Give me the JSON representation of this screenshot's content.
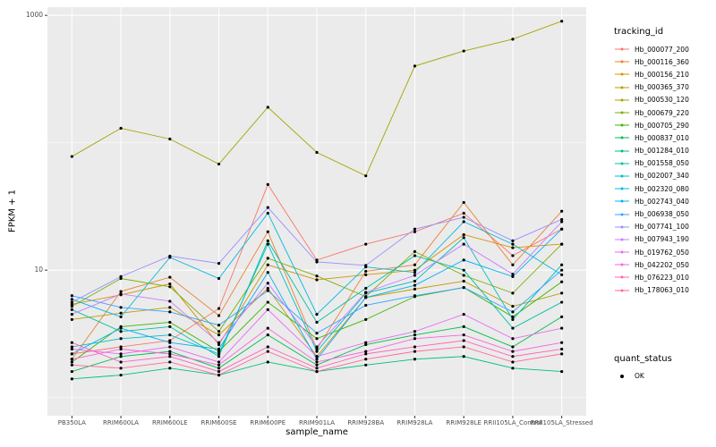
{
  "figure": {
    "y_axis_title": "FPKM + 1",
    "x_axis_title": "sample_name",
    "legend_tracking_title": "tracking_id",
    "legend_quant_title": "quant_status",
    "legend_quant_entries": [
      "OK"
    ]
  },
  "chart_data": {
    "type": "line",
    "title": "",
    "xlabel": "sample_name",
    "ylabel": "FPKM + 1",
    "y_scale": "log10",
    "ylim": [
      0.72,
      1160
    ],
    "y_major_breaks": [
      10,
      1000
    ],
    "y_minor_breaks": [
      1,
      100
    ],
    "grid": true,
    "legend_position": "right",
    "panel_background": "#EBEBEB",
    "gridline_color": "#FFFFFF",
    "point_color": "#000000",
    "point_status": "OK",
    "categories": [
      "PB350LA",
      "RRIM600LA",
      "RRIM600LE",
      "RRIM600SE",
      "RRIM600PE",
      "RRIM901LA",
      "RRIM928BA",
      "RRIM928LA",
      "RRIM928LE",
      "RRII105LA_Control",
      "RRII105LA_Stressed"
    ],
    "series": [
      {
        "name": "Hb_000077_200",
        "color": "#F8766D",
        "values": [
          2.2,
          2.5,
          2.8,
          5.0,
          47,
          12,
          16,
          20,
          28,
          13,
          21
        ]
      },
      {
        "name": "Hb_000116_360",
        "color": "#EA8331",
        "values": [
          2.0,
          6.8,
          8.8,
          4.4,
          20,
          2.4,
          9.8,
          11,
          34,
          11,
          29
        ]
      },
      {
        "name": "Hb_000156_210",
        "color": "#D89000",
        "values": [
          5.4,
          6.4,
          7.8,
          2.6,
          11,
          8.4,
          9.2,
          10,
          19,
          15,
          16
        ]
      },
      {
        "name": "Hb_000365_370",
        "color": "#C09B00",
        "values": [
          4.1,
          4.6,
          5.1,
          3.1,
          7.2,
          2.1,
          6.1,
          7.1,
          8.2,
          5.2,
          6.6
        ]
      },
      {
        "name": "Hb_000530_120",
        "color": "#A3A500",
        "values": [
          78,
          130,
          107,
          68,
          190,
          84,
          55,
          400,
          525,
          650,
          900
        ]
      },
      {
        "name": "Hb_000679_220",
        "color": "#7CAE00",
        "values": [
          5.2,
          8.6,
          7.4,
          3.3,
          12.4,
          9.0,
          6.2,
          14,
          9.1,
          6.6,
          16
        ]
      },
      {
        "name": "Hb_000705_290",
        "color": "#39B600",
        "values": [
          1.9,
          3.6,
          3.9,
          2.3,
          5.6,
          2.9,
          4.1,
          6.2,
          7.3,
          4.3,
          8.1
        ]
      },
      {
        "name": "Hb_000837_010",
        "color": "#00BB4E",
        "values": [
          1.6,
          2.1,
          2.3,
          1.7,
          3.1,
          1.8,
          2.6,
          3.1,
          3.6,
          2.5,
          4.3
        ]
      },
      {
        "name": "Hb_001284_010",
        "color": "#00BF7D",
        "values": [
          1.4,
          1.5,
          1.7,
          1.5,
          1.9,
          1.6,
          1.8,
          2.0,
          2.1,
          1.7,
          1.6
        ]
      },
      {
        "name": "Hb_001558_050",
        "color": "#00C1A3",
        "values": [
          4.9,
          3.3,
          3.6,
          2.1,
          17,
          3.9,
          7.2,
          13,
          10,
          3.5,
          5.6
        ]
      },
      {
        "name": "Hb_002007_340",
        "color": "#00BFC4",
        "values": [
          2.5,
          2.9,
          3.1,
          2.2,
          16,
          2.3,
          6.6,
          8.2,
          18,
          4.1,
          11
        ]
      },
      {
        "name": "Hb_002320_080",
        "color": "#00BAE0",
        "values": [
          5.9,
          4.3,
          12.6,
          8.6,
          28,
          4.5,
          10.6,
          9.6,
          24,
          16,
          9.2
        ]
      },
      {
        "name": "Hb_002743_040",
        "color": "#00B0F6",
        "values": [
          2.2,
          3.5,
          2.7,
          2.4,
          9.6,
          2.0,
          6.1,
          7.6,
          12,
          8.9,
          21
        ]
      },
      {
        "name": "Hb_006938_050",
        "color": "#35A2FF",
        "values": [
          6.3,
          5.1,
          4.7,
          3.7,
          6.9,
          3.2,
          5.3,
          6.3,
          7.3,
          4.7,
          10
        ]
      },
      {
        "name": "Hb_007741_100",
        "color": "#9590FF",
        "values": [
          5.6,
          8.9,
          12.9,
          11.3,
          31,
          11.6,
          10.9,
          21,
          26,
          17,
          25
        ]
      },
      {
        "name": "Hb_007943_190",
        "color": "#C77CFF",
        "values": [
          4.5,
          6.5,
          5.7,
          2.7,
          7.9,
          2.5,
          6.7,
          9.1,
          16,
          9.3,
          24
        ]
      },
      {
        "name": "Hb_019762_050",
        "color": "#E76BF3",
        "values": [
          2.4,
          2.2,
          2.5,
          1.9,
          4.9,
          2.1,
          2.7,
          3.3,
          4.5,
          2.9,
          3.5
        ]
      },
      {
        "name": "Hb_042202_050",
        "color": "#FA62DB",
        "values": [
          2.0,
          2.4,
          2.2,
          1.8,
          3.5,
          1.9,
          2.3,
          2.9,
          3.1,
          2.3,
          2.7
        ]
      },
      {
        "name": "Hb_076223_010",
        "color": "#FF62BC",
        "values": [
          2.7,
          1.9,
          2.1,
          1.6,
          2.5,
          1.7,
          2.2,
          2.5,
          2.8,
          2.1,
          2.4
        ]
      },
      {
        "name": "Hb_178063_010",
        "color": "#FF6A98",
        "values": [
          1.8,
          1.7,
          1.9,
          1.5,
          2.3,
          1.6,
          2.0,
          2.3,
          2.5,
          1.9,
          2.2
        ]
      }
    ]
  }
}
